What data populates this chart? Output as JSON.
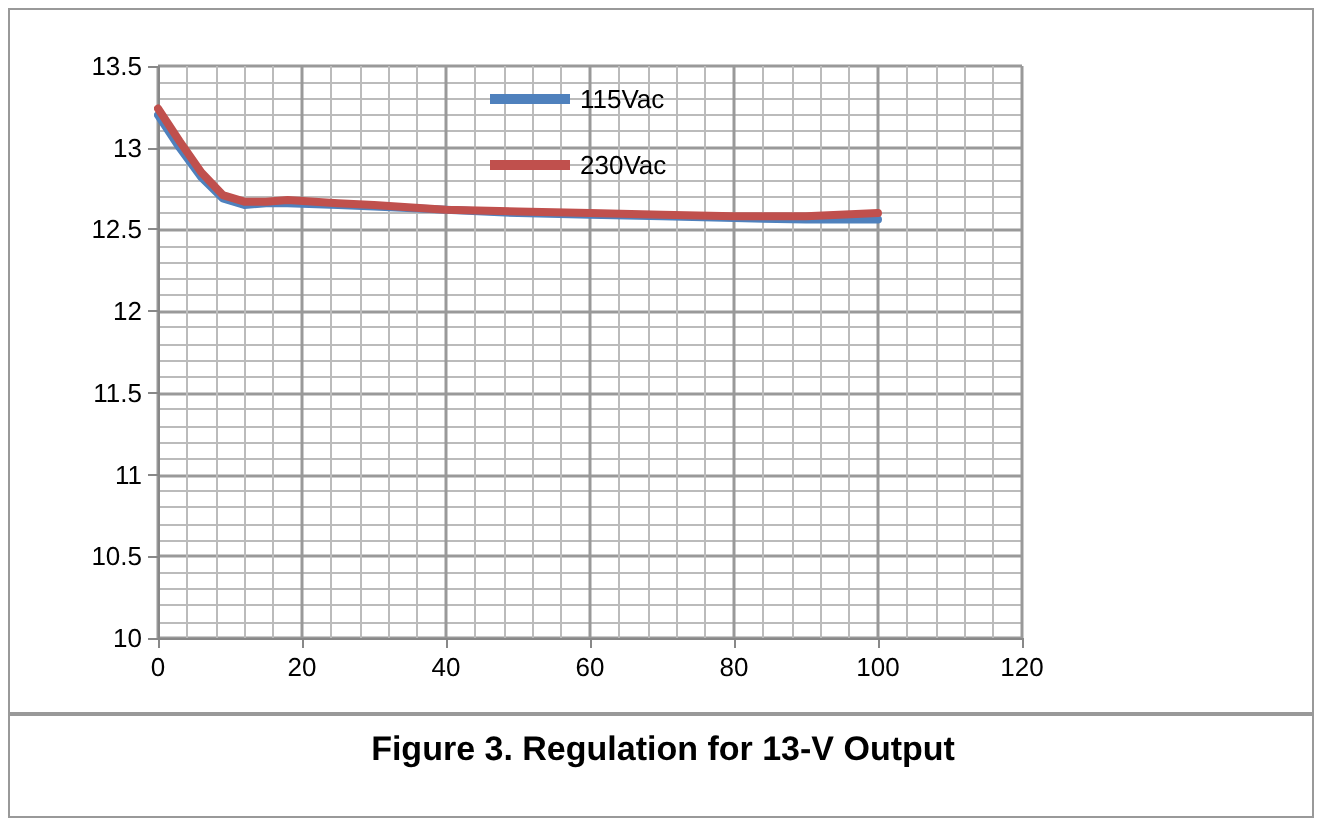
{
  "chart_data": {
    "type": "line",
    "title": "Figure 3. Regulation for 13-V Output",
    "xlim": [
      0,
      120
    ],
    "xticks": [
      0,
      20,
      40,
      60,
      80,
      100,
      120
    ],
    "ylim": [
      10,
      13.5
    ],
    "yticks": [
      10,
      10.5,
      11,
      11.5,
      12,
      12.5,
      13,
      13.5
    ],
    "grid": true,
    "legend": "top",
    "marker": "none",
    "line_style": "solid",
    "series": [
      {
        "name": "115Vac",
        "color": "#4f81bd",
        "x": [
          0,
          3,
          6,
          9,
          12,
          15,
          18,
          25,
          30,
          40,
          50,
          60,
          70,
          80,
          90,
          100
        ],
        "values": [
          13.2,
          13.0,
          12.82,
          12.69,
          12.65,
          12.66,
          12.66,
          12.65,
          12.64,
          12.62,
          12.6,
          12.59,
          12.58,
          12.57,
          12.56,
          12.56
        ]
      },
      {
        "name": "230Vac",
        "color": "#c0504d",
        "x": [
          0,
          3,
          6,
          9,
          12,
          15,
          18,
          25,
          30,
          40,
          50,
          60,
          70,
          80,
          90,
          100
        ],
        "values": [
          13.24,
          13.04,
          12.85,
          12.71,
          12.67,
          12.67,
          12.68,
          12.66,
          12.65,
          12.62,
          12.61,
          12.6,
          12.59,
          12.58,
          12.58,
          12.6
        ]
      }
    ]
  }
}
